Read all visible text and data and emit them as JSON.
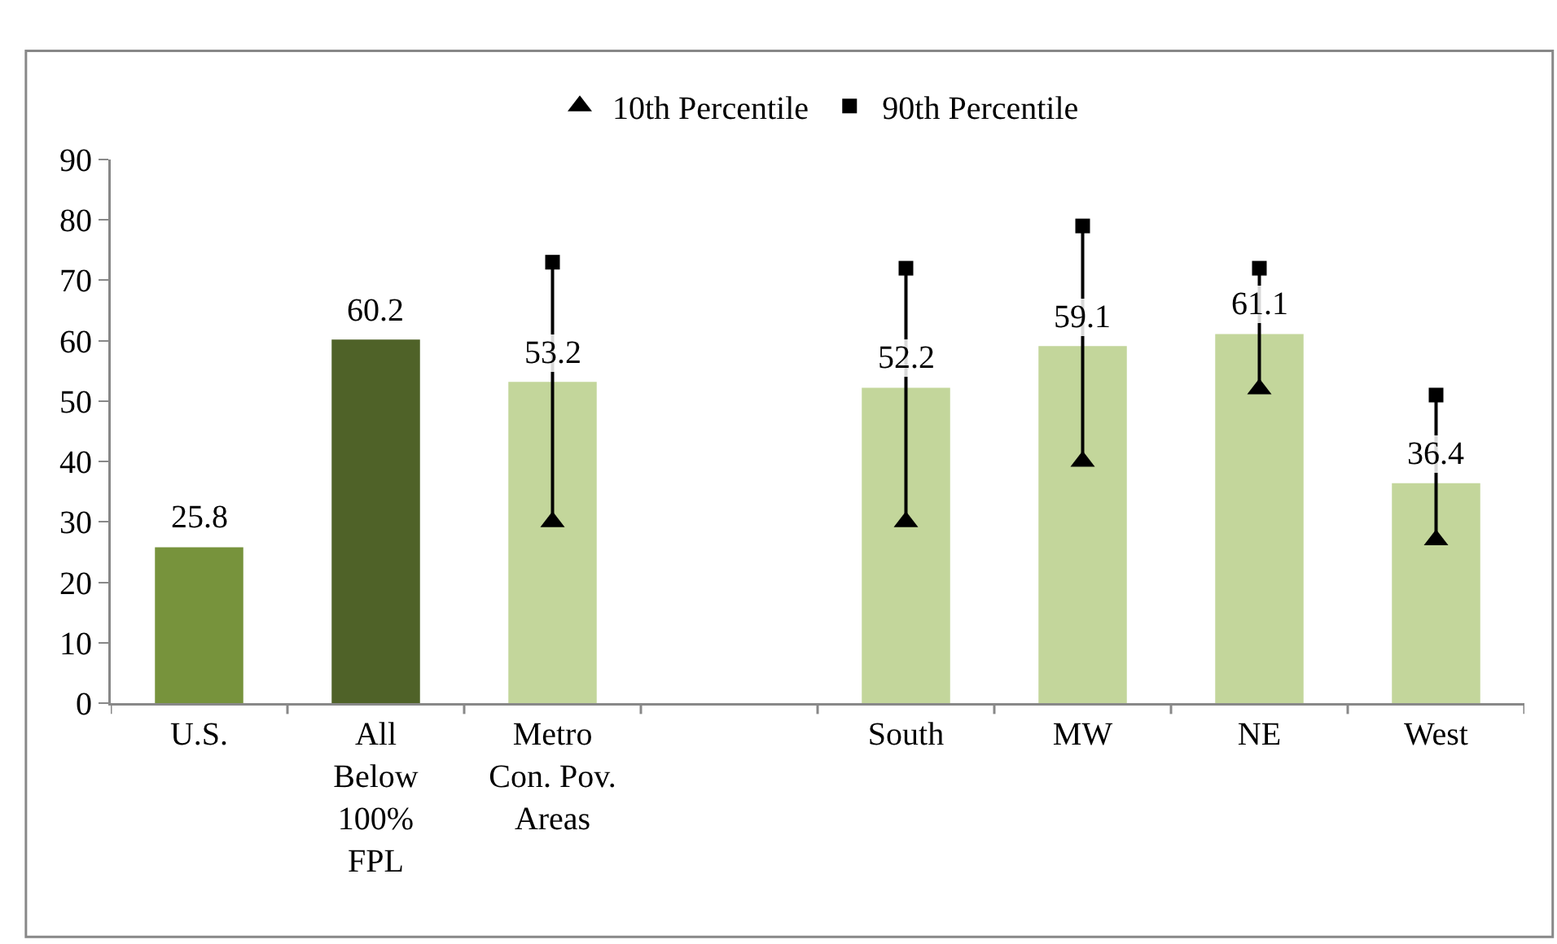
{
  "chart_data": {
    "type": "bar",
    "categories": [
      "U.S.",
      "All\nBelow\n100%\nFPL",
      "Metro\nCon. Pov.\nAreas",
      null,
      "South",
      "MW",
      "NE",
      "West"
    ],
    "series": [
      {
        "colors": [
          "#77933c",
          "#4f6228",
          "#c3d69b",
          "#c3d69b",
          "#c3d69b",
          "#c3d69b",
          "#c3d69b",
          "#c3d69b"
        ],
        "values": [
          25.8,
          60.2,
          53.2,
          null,
          52.2,
          59.1,
          61.1,
          36.4
        ],
        "value_labels": [
          "25.8",
          "60.2",
          "53.2",
          null,
          "52.2",
          "59.1",
          "61.1",
          "36.4"
        ]
      },
      {
        "type": "line",
        "color": "#000000",
        "marker": "none",
        "x": [
          "Metro\nCon. Pov.\nAreas",
          "Metro\nCon. Pov.\nAreas",
          null,
          "South",
          "South",
          null,
          "MW",
          "MW",
          null,
          "NE",
          "NE",
          null,
          "West",
          "West"
        ],
        "values": [
          30,
          73,
          null,
          30,
          72,
          null,
          40,
          79,
          null,
          52,
          72,
          null,
          27,
          51
        ]
      },
      {
        "type": "scatter",
        "name": "10th Percentile",
        "color": "#000000",
        "marker": "triangle",
        "values": [
          null,
          null,
          30,
          null,
          30,
          40,
          52,
          27
        ]
      },
      {
        "type": "scatter",
        "name": "90th Percentile",
        "color": "#000000",
        "marker": "square",
        "values": [
          null,
          null,
          73,
          null,
          72,
          79,
          72,
          51
        ]
      }
    ],
    "ylim": [
      0,
      90
    ],
    "yticks": [
      0,
      10,
      20,
      30,
      40,
      50,
      60,
      70,
      80,
      90
    ],
    "grid": false,
    "legend": "top"
  }
}
